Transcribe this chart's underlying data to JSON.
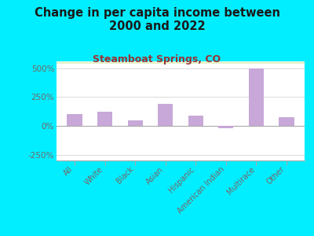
{
  "title": "Change in per capita income between\n2000 and 2022",
  "subtitle": "Steamboat Springs, CO",
  "categories": [
    "All",
    "White",
    "Black",
    "Asian",
    "Hispanic",
    "American Indian",
    "Multirace",
    "Other"
  ],
  "values": [
    100,
    120,
    50,
    190,
    90,
    -20,
    500,
    75
  ],
  "bar_color": "#c8a8d8",
  "background_color": "#00eeff",
  "title_color": "#1a1a1a",
  "subtitle_color": "#993333",
  "axis_label_color": "#776666",
  "ytick_color": "#776666",
  "ylim": [
    -300,
    560
  ],
  "yticks": [
    -250,
    0,
    250,
    500
  ],
  "ytick_labels": [
    "-250%",
    "0%",
    "250%",
    "500%"
  ],
  "title_fontsize": 10.5,
  "subtitle_fontsize": 9
}
